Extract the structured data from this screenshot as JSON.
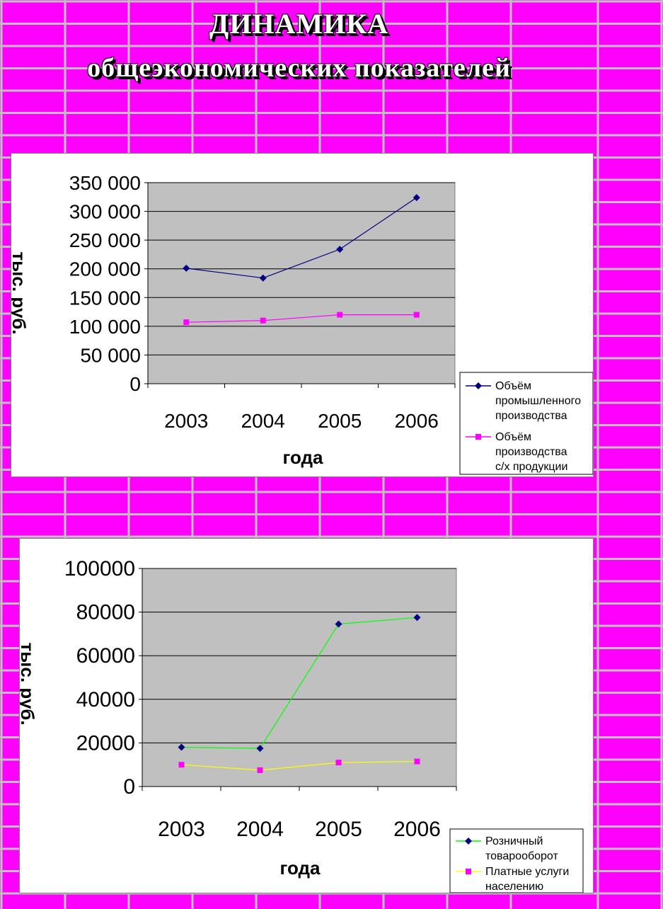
{
  "header": {
    "title_line1": "ДИНАМИКА",
    "title_line2": "общеэкономических показателей"
  },
  "colors": {
    "background": "#ff00ff",
    "grid_lines": "#c0c0c0",
    "plot_area": "#c0c0c0",
    "chart_area": "#ffffff"
  },
  "chart_data": [
    {
      "type": "line",
      "categories": [
        "2003",
        "2004",
        "2005",
        "2006"
      ],
      "series": [
        {
          "name": "Объём промышленного производства",
          "values": [
            201000,
            184000,
            234000,
            324000
          ],
          "color": "#000080",
          "marker": "diamond"
        },
        {
          "name": "Объём производства с/х продукции",
          "values": [
            107000,
            110000,
            120000,
            120000
          ],
          "color": "#ff00ff",
          "marker": "square"
        }
      ],
      "ylim": [
        0,
        350000
      ],
      "yticks": [
        "0",
        "50 000",
        "100 000",
        "150 000",
        "200 000",
        "250 000",
        "300 000",
        "350 000"
      ],
      "xlabel": "года",
      "ylabel": "тыс. руб.",
      "grid": true,
      "legend": "bottom-right"
    },
    {
      "type": "line",
      "categories": [
        "2003",
        "2004",
        "2005",
        "2006"
      ],
      "series": [
        {
          "name": "Розничный товарооборот",
          "values": [
            18000,
            17500,
            74500,
            77500
          ],
          "color": "#00ff00",
          "marker": "diamond",
          "marker_color": "#000080"
        },
        {
          "name": "Платные услуги населению",
          "values": [
            10000,
            7500,
            11000,
            11500
          ],
          "color": "#ffff00",
          "marker": "square",
          "marker_color": "#ff00ff"
        }
      ],
      "ylim": [
        0,
        100000
      ],
      "yticks": [
        "0",
        "20000",
        "40000",
        "60000",
        "80000",
        "100000"
      ],
      "xlabel": "года",
      "ylabel": "тыс. руб.",
      "grid": true,
      "legend": "bottom-right"
    }
  ]
}
